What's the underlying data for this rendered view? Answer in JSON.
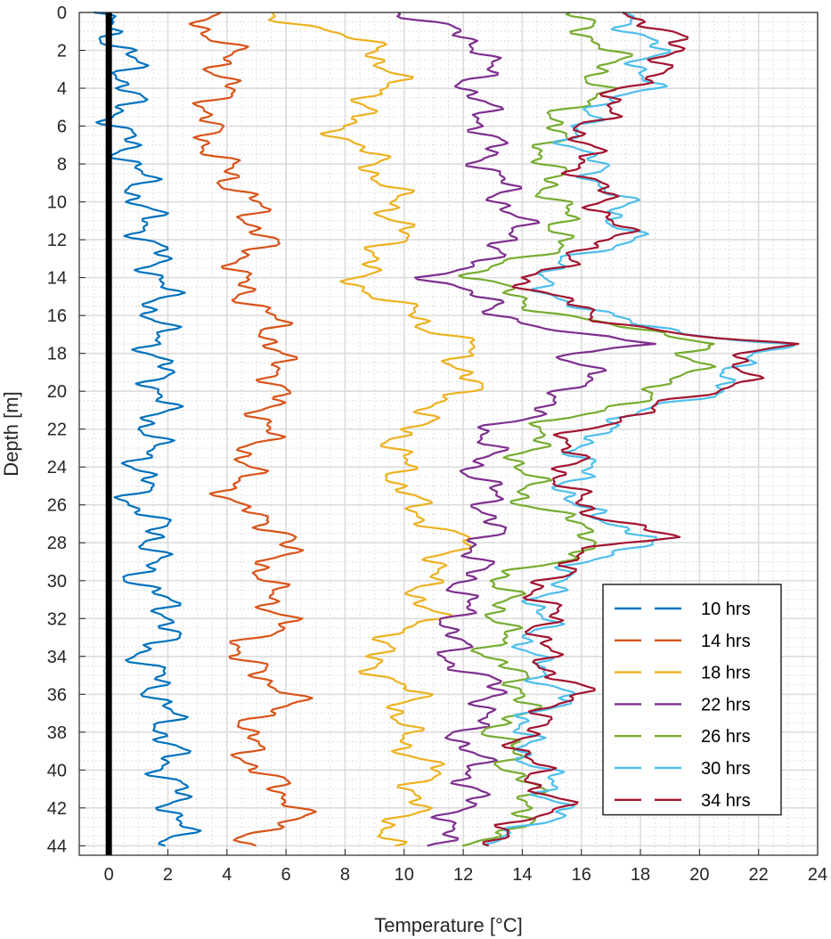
{
  "chart_data": {
    "type": "line",
    "title": "",
    "xlabel": "Temperature [°C]",
    "ylabel": "Depth [m]",
    "xlim": [
      -1,
      24
    ],
    "ylim": [
      0,
      44.5
    ],
    "y_reversed": true,
    "x_ticks": [
      "0",
      "2",
      "4",
      "6",
      "8",
      "10",
      "12",
      "14",
      "16",
      "18",
      "20",
      "22",
      "24"
    ],
    "y_ticks": [
      "0",
      "2",
      "4",
      "6",
      "8",
      "10",
      "12",
      "14",
      "16",
      "18",
      "20",
      "22",
      "24",
      "26",
      "28",
      "30",
      "32",
      "34",
      "36",
      "38",
      "40",
      "42",
      "44"
    ],
    "grid": true,
    "minor_grid": true,
    "legend_position": "bottom-right",
    "reference_line": {
      "x": 0,
      "color": "#000000"
    },
    "depth": [
      0,
      2,
      4,
      6,
      8,
      10,
      12,
      14,
      16,
      17,
      17.5,
      18,
      19,
      20,
      22,
      24,
      26,
      27.7,
      28,
      30,
      32,
      34,
      36,
      38,
      40,
      42,
      44
    ],
    "series": [
      {
        "name": "10 hrs",
        "color": "#0072BD",
        "values": [
          -0.5,
          0.6,
          0.7,
          0.3,
          0.9,
          1.1,
          1.4,
          1.8,
          1.6,
          1.6,
          1.7,
          1.6,
          1.7,
          1.8,
          1.5,
          1.2,
          0.9,
          1.9,
          1.6,
          1.1,
          2.3,
          1.2,
          1.8,
          2.0,
          2.0,
          2.4,
          2.2
        ]
      },
      {
        "name": "14 hrs",
        "color": "#D95319",
        "values": [
          3.0,
          4.0,
          3.9,
          3.2,
          3.8,
          4.8,
          5.2,
          4.2,
          5.4,
          5.6,
          5.7,
          5.5,
          5.9,
          5.6,
          5.3,
          4.6,
          4.1,
          6.4,
          5.9,
          5.2,
          6.0,
          4.2,
          6.3,
          4.6,
          5.0,
          6.6,
          4.6
        ]
      },
      {
        "name": "18 hrs",
        "color": "#EDB120",
        "values": [
          5.5,
          9.3,
          9.5,
          7.8,
          9.0,
          9.7,
          9.8,
          8.2,
          10.3,
          11.5,
          12.2,
          11.8,
          12.2,
          12.0,
          10.0,
          9.8,
          10.2,
          11.6,
          12.1,
          10.6,
          10.8,
          8.7,
          10.2,
          9.8,
          10.9,
          10.2,
          9.2
        ]
      },
      {
        "name": "22 hrs",
        "color": "#7E2F8E",
        "values": [
          10.0,
          13.0,
          12.3,
          12.8,
          12.9,
          13.5,
          13.9,
          11.2,
          13.5,
          15.5,
          18.5,
          15.8,
          16.2,
          15.8,
          13.0,
          12.5,
          13.0,
          12.8,
          12.6,
          12.2,
          11.8,
          11.5,
          13.3,
          12.0,
          12.4,
          12.1,
          10.9
        ]
      },
      {
        "name": "26 hrs",
        "color": "#77AC30",
        "values": [
          15.5,
          17.0,
          16.6,
          15.0,
          14.8,
          15.2,
          15.6,
          12.3,
          15.3,
          18.5,
          21.2,
          19.4,
          19.8,
          18.6,
          14.5,
          14.0,
          14.3,
          16.8,
          16.6,
          13.2,
          13.4,
          13.0,
          14.3,
          13.2,
          13.8,
          14.5,
          12.6
        ]
      },
      {
        "name": "30 hrs",
        "color": "#4DBEEE",
        "values": [
          17.5,
          18.4,
          18.0,
          15.6,
          16.3,
          17.2,
          17.6,
          14.2,
          16.5,
          20.0,
          23.0,
          21.5,
          21.4,
          20.4,
          16.4,
          16.0,
          15.5,
          18.5,
          17.8,
          15.0,
          14.6,
          14.2,
          15.4,
          13.8,
          14.6,
          15.4,
          13.0
        ]
      },
      {
        "name": "34 hrs",
        "color": "#A2142F",
        "values": [
          17.8,
          19.5,
          17.6,
          16.2,
          16.0,
          16.8,
          17.2,
          14.0,
          16.2,
          19.5,
          22.5,
          21.6,
          21.7,
          20.6,
          15.9,
          15.4,
          15.8,
          18.9,
          17.0,
          14.6,
          14.9,
          14.6,
          15.9,
          14.0,
          14.3,
          15.2,
          12.4
        ]
      }
    ]
  }
}
